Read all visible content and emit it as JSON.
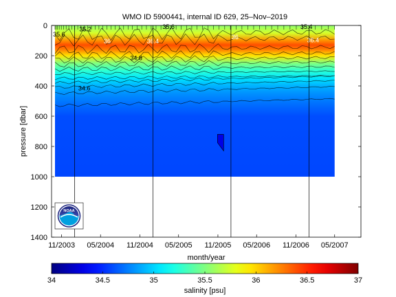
{
  "chart_data": {
    "type": "heatmap",
    "title": "WMO ID 5900441, internal ID 629, 25–Nov–2019",
    "xlabel": "month/year",
    "ylabel": "pressure [dbar]",
    "x_tick_labels": [
      "11/2003",
      "05/2004",
      "11/2004",
      "05/2005",
      "11/2005",
      "05/2006",
      "11/2006",
      "05/2007"
    ],
    "x_tick_dates": [
      "2003-11-01",
      "2004-05-01",
      "2004-11-01",
      "2005-05-01",
      "2005-11-01",
      "2006-05-01",
      "2006-11-01",
      "2007-05-01"
    ],
    "xlim": [
      "2003-09-15",
      "2007-09-01"
    ],
    "y_ticks": [
      0,
      200,
      400,
      600,
      800,
      1000,
      1200,
      1400
    ],
    "ylim": [
      0,
      1400
    ],
    "y_reversed": true,
    "data_pressure_max": 1000,
    "data_x_range": [
      "2003-10-01",
      "2007-05-01"
    ],
    "year_boundaries": [
      "2004-01-01",
      "2005-01-01",
      "2006-01-01",
      "2007-01-01"
    ],
    "colorbar": {
      "label": "salinity [psu]",
      "range": [
        34,
        37
      ],
      "ticks": [
        "34",
        "34.5",
        "35",
        "35.5",
        "36",
        "36.5",
        "37"
      ],
      "colormap": "jet"
    },
    "salinity_profile": [
      {
        "pressure": 0,
        "salinity": 35.55
      },
      {
        "pressure": 50,
        "salinity": 35.75
      },
      {
        "pressure": 100,
        "salinity": 36.2
      },
      {
        "pressure": 130,
        "salinity": 36.4
      },
      {
        "pressure": 160,
        "salinity": 36.25
      },
      {
        "pressure": 200,
        "salinity": 35.95
      },
      {
        "pressure": 250,
        "salinity": 35.5
      },
      {
        "pressure": 300,
        "salinity": 35.25
      },
      {
        "pressure": 350,
        "salinity": 35.05
      },
      {
        "pressure": 400,
        "salinity": 34.9
      },
      {
        "pressure": 450,
        "salinity": 34.8
      },
      {
        "pressure": 520,
        "salinity": 34.7
      },
      {
        "pressure": 600,
        "salinity": 34.6
      },
      {
        "pressure": 1000,
        "salinity": 34.58
      }
    ],
    "contour_labels": [
      {
        "text": "35.6",
        "date": "2003-10-20",
        "pressure": 60
      },
      {
        "text": "35.2",
        "date": "2004-02-20",
        "pressure": 25
      },
      {
        "text": "35.6",
        "date": "2005-03-15",
        "pressure": 10
      },
      {
        "text": "36",
        "date": "2004-06-01",
        "pressure": 105
      },
      {
        "text": "36",
        "date": "2006-01-20",
        "pressure": 78
      },
      {
        "text": "36.4",
        "date": "2005-01-01",
        "pressure": 105
      },
      {
        "text": "36.4",
        "date": "2007-01-20",
        "pressure": 98
      },
      {
        "text": "35.4",
        "date": "2006-12-20",
        "pressure": 8
      },
      {
        "text": "34.8",
        "date": "2004-10-15",
        "pressure": 215
      },
      {
        "text": "34.6",
        "date": "2004-02-15",
        "pressure": 415
      }
    ],
    "anomaly": {
      "date": "2005-11-15",
      "pressure_range": [
        720,
        830
      ],
      "salinity": 34.3
    },
    "grid": false
  },
  "logo": {
    "text": "NOAA"
  }
}
